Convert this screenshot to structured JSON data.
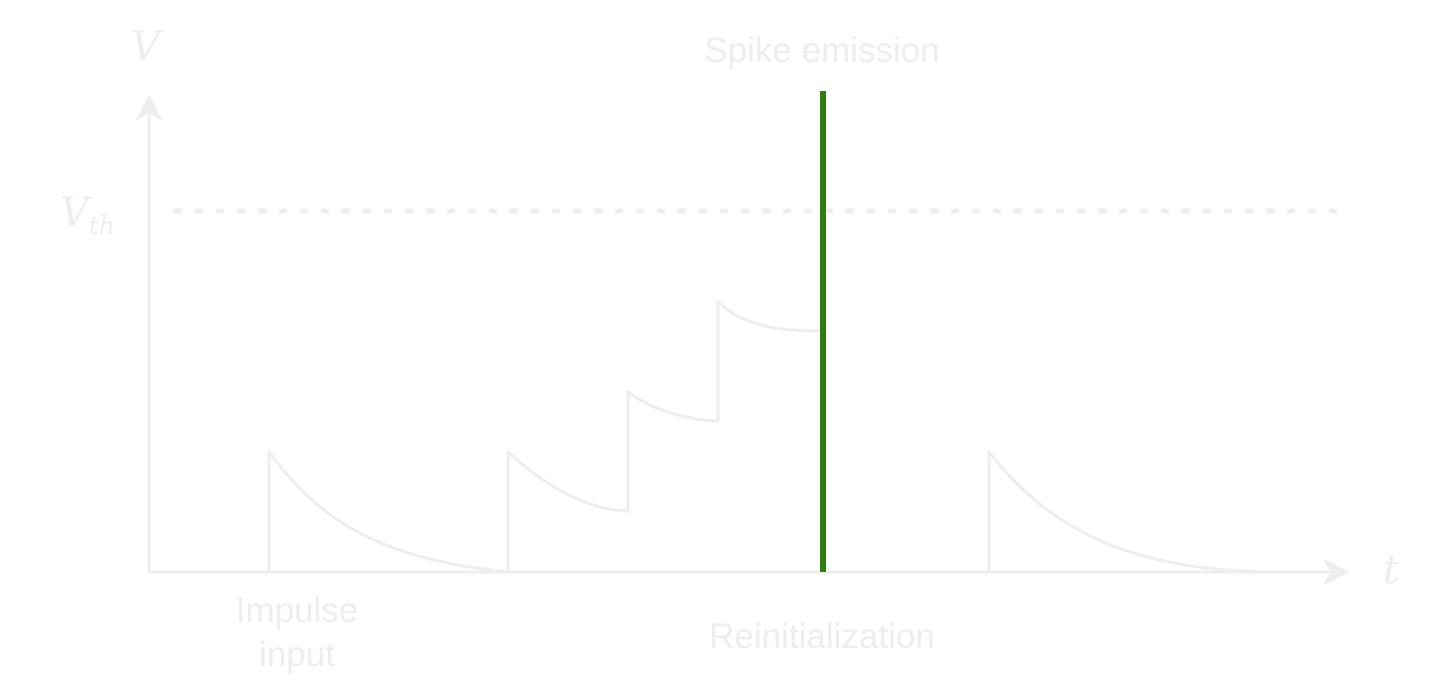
{
  "colors": {
    "ink": "#eeeeee",
    "spike": "#2e7d0e",
    "background": "#ffffff"
  },
  "diagram": {
    "axis_y_label": "V",
    "axis_x_label": "t",
    "threshold_label_main": "V",
    "threshold_label_sub": "th",
    "spike_label": "Spike emission",
    "input_label_line1": "Impulse",
    "input_label_line2": "input",
    "reset_label": "Reinitialization"
  }
}
